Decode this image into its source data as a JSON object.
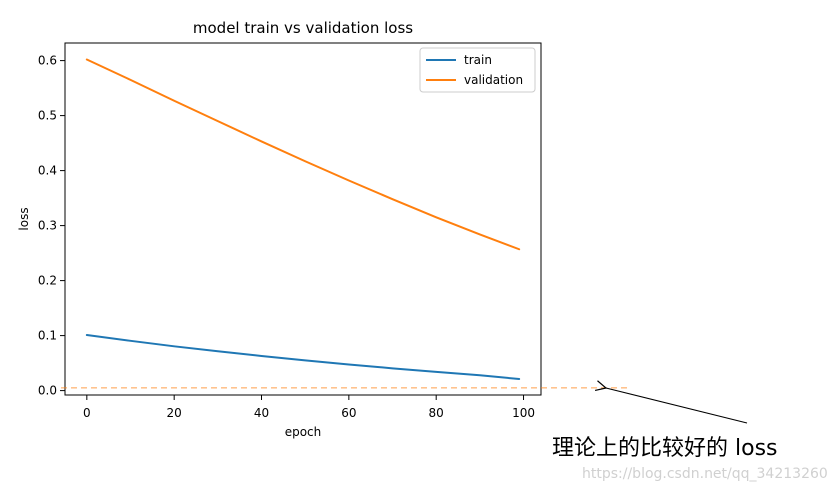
{
  "chart_data": {
    "type": "line",
    "title": "model train vs validation loss",
    "xlabel": "epoch",
    "ylabel": "loss",
    "xlim": [
      -5,
      104
    ],
    "ylim": [
      -0.008,
      0.632
    ],
    "x_ticks": [
      0,
      20,
      40,
      60,
      80,
      100
    ],
    "y_ticks": [
      0.0,
      0.1,
      0.2,
      0.3,
      0.4,
      0.5,
      0.6
    ],
    "grid": false,
    "legend_position": "top-right",
    "series": [
      {
        "name": "train",
        "color": "#1f77b4",
        "x": [
          0,
          10,
          20,
          30,
          40,
          50,
          60,
          70,
          80,
          90,
          99
        ],
        "y": [
          0.101,
          0.0905,
          0.0805,
          0.0715,
          0.063,
          0.055,
          0.0475,
          0.0405,
          0.034,
          0.028,
          0.021
        ]
      },
      {
        "name": "validation",
        "color": "#ff7f0e",
        "x": [
          0,
          10,
          20,
          30,
          40,
          50,
          60,
          70,
          80,
          90,
          99
        ],
        "y": [
          0.602,
          0.565,
          0.527,
          0.49,
          0.453,
          0.417,
          0.382,
          0.348,
          0.315,
          0.284,
          0.257
        ]
      }
    ],
    "reference_line": {
      "y": 0.005,
      "color": "#ff7f0e",
      "style": "dashed"
    },
    "annotation": {
      "text": "理论上的比较好的 loss"
    }
  },
  "watermark": "https://blog.csdn.net/qq_34213260"
}
